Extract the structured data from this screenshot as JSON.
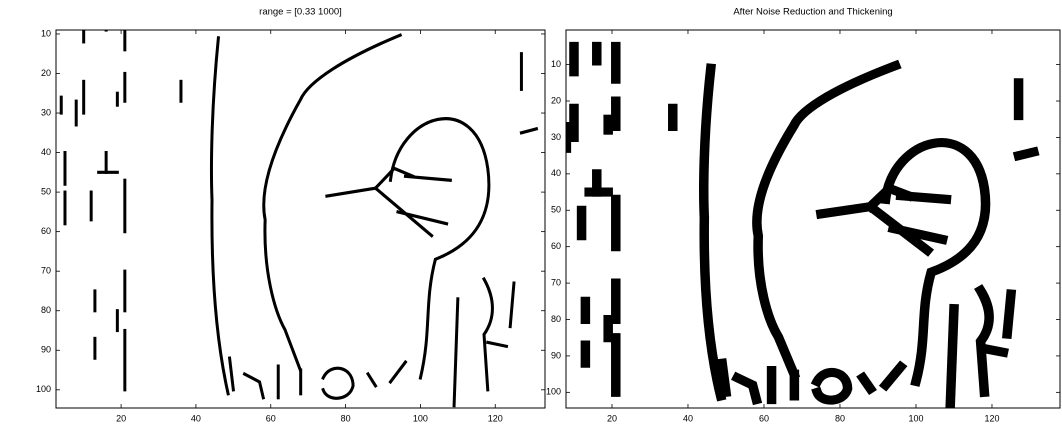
{
  "chart_data": [
    {
      "type": "image",
      "title": "range = [0.33  1000]",
      "xlim": [
        2.6,
        133.3
      ],
      "ylim": [
        9,
        104.6
      ],
      "y_reversed": true,
      "xticks": [
        20,
        40,
        60,
        80,
        100,
        120
      ],
      "yticks": [
        10,
        20,
        30,
        40,
        50,
        60,
        70,
        80,
        90,
        100
      ]
    },
    {
      "type": "image",
      "title": "After Noise Reduction and Thickening",
      "xlim": [
        7.9,
        137.9
      ],
      "ylim": [
        0.5,
        104.3
      ],
      "y_reversed": true,
      "xticks": [
        20,
        40,
        60,
        80,
        100,
        120
      ],
      "yticks": [
        10,
        20,
        30,
        40,
        50,
        60,
        70,
        80,
        90,
        100
      ]
    }
  ]
}
